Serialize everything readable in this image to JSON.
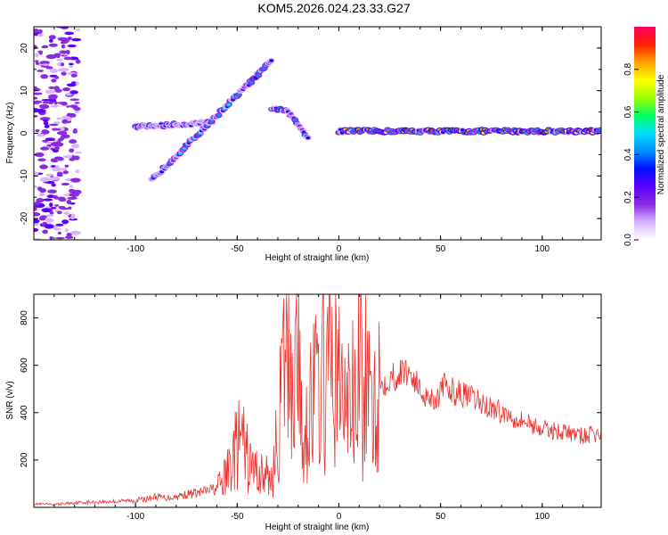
{
  "title": "KOM5.2026.024.23.33.G27",
  "colors": {
    "axis": "#000000",
    "snr_line": "#e8322e",
    "colormap": [
      "#ffffff",
      "#d7b4ff",
      "#8a2be2",
      "#5a00ff",
      "#0010ff",
      "#0090ff",
      "#00e0ff",
      "#00ff60",
      "#a0ff00",
      "#ffff00",
      "#ffa000",
      "#ff2000",
      "#ff0060"
    ]
  },
  "chart_data": [
    {
      "type": "heatmap",
      "name": "frequency-vs-height",
      "xlabel": "Height of straight line (km)",
      "ylabel": "Frequency (Hz)",
      "xlim": [
        -150,
        129
      ],
      "ylim": [
        -25,
        25
      ],
      "xticks": [
        -100,
        -50,
        0,
        50,
        100
      ],
      "xtick_labels": [
        "-100",
        "-50",
        "0",
        "50",
        "100"
      ],
      "yticks": [
        -20,
        -10,
        0,
        10,
        20
      ],
      "ytick_labels": [
        "-20",
        "-10",
        "0",
        "10",
        "20"
      ],
      "colorbar": {
        "label": "Normalized spectral amplitude",
        "range": [
          0,
          1
        ],
        "ticks": [
          0.0,
          0.2,
          0.4,
          0.6,
          0.8
        ],
        "tick_labels": [
          "0.0",
          "0.2",
          "0.4",
          "0.6",
          "0.8"
        ]
      },
      "features": [
        {
          "name": "carrier-line",
          "x": [
            0,
            129
          ],
          "freq": 0.5,
          "amplitude": 0.65
        },
        {
          "name": "low-branch",
          "x": [
            -100,
            -62
          ],
          "freq": [
            1.5,
            2.5
          ],
          "amplitude": 0.3
        },
        {
          "name": "rising-trace",
          "x": [
            -92,
            -33
          ],
          "freq": [
            -11,
            17
          ],
          "amplitude": 0.35
        },
        {
          "name": "mid-branch",
          "x": [
            -33,
            -25
          ],
          "freq": [
            6,
            5
          ],
          "amplitude": 0.45
        },
        {
          "name": "falling-trace",
          "x": [
            -25,
            -15
          ],
          "freq": [
            5,
            -1
          ],
          "amplitude": 0.3
        },
        {
          "name": "scatter-noise",
          "x": [
            -150,
            -128
          ],
          "freq": [
            -25,
            25
          ],
          "amplitude": 0.15
        }
      ]
    },
    {
      "type": "line",
      "name": "snr-vs-height",
      "xlabel": "Height of straight line (km)",
      "ylabel": "SNR (v/v)",
      "xlim": [
        -150,
        129
      ],
      "ylim": [
        0,
        900
      ],
      "xticks": [
        -100,
        -50,
        0,
        50,
        100
      ],
      "xtick_labels": [
        "-100",
        "-50",
        "0",
        "50",
        "100"
      ],
      "yticks": [
        200,
        400,
        600,
        800
      ],
      "ytick_labels": [
        "200",
        "400",
        "600",
        "800"
      ],
      "series": [
        {
          "name": "SNR",
          "x": [
            -150,
            -140,
            -130,
            -120,
            -110,
            -100,
            -95,
            -90,
            -85,
            -80,
            -75,
            -70,
            -65,
            -60,
            -56,
            -52,
            -48,
            -44,
            -40,
            -36,
            -33,
            -30,
            -27,
            -24,
            -22,
            -21,
            -20,
            -19,
            -18,
            -15,
            -12,
            -9,
            -6,
            -3,
            0,
            3,
            6,
            9,
            11,
            12,
            13,
            15,
            18,
            21,
            25,
            30,
            33,
            36,
            40,
            44,
            48,
            52,
            56,
            60,
            70,
            80,
            90,
            100,
            110,
            120,
            125,
            129
          ],
          "y": [
            15,
            12,
            20,
            22,
            25,
            30,
            35,
            45,
            40,
            45,
            55,
            60,
            70,
            80,
            120,
            220,
            280,
            180,
            150,
            130,
            120,
            300,
            580,
            650,
            500,
            640,
            890,
            420,
            240,
            430,
            480,
            520,
            540,
            600,
            520,
            430,
            480,
            410,
            770,
            160,
            620,
            410,
            500,
            520,
            550,
            560,
            580,
            560,
            490,
            470,
            460,
            510,
            490,
            480,
            440,
            400,
            370,
            330,
            320,
            300,
            310,
            305
          ]
        }
      ]
    }
  ]
}
